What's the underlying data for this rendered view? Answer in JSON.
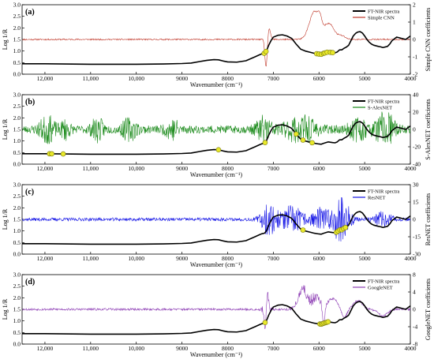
{
  "colors": {
    "spectrum": "#000000",
    "marker_fill": "#e8e82a",
    "marker_stroke": "#7a7a10",
    "panel_a": "#c0392b",
    "panel_b": "#1a8a1a",
    "panel_c": "#1414e6",
    "panel_d": "#8e3fb5"
  },
  "chart_data": [
    {
      "type": "line",
      "panel": "(a)",
      "xlabel": "Wavenumber (cm⁻¹)",
      "ylabel_left": "Log 1/R",
      "ylabel_right": "Simple CNN coefficients",
      "x_range": [
        12500,
        4000
      ],
      "x_ticks": [
        12000,
        11000,
        10000,
        9000,
        8000,
        7000,
        6000,
        5000,
        4000
      ],
      "x_tick_labels": [
        "12,000",
        "11,000",
        "10,000",
        "9000",
        "8000",
        "7000",
        "6000",
        "5000",
        "4000"
      ],
      "ylim_left": [
        0.0,
        3.0
      ],
      "y_ticks_left": [
        "0.0",
        "0.5",
        "1.0",
        "1.5",
        "2.0",
        "2.5",
        "3.0"
      ],
      "ylim_right": [
        -2,
        2
      ],
      "y_ticks_right": [
        "-2",
        "-1",
        "0",
        "1",
        "2"
      ],
      "legend": [
        "FT-NIR spectra",
        "Simple CNN"
      ],
      "legend_position": "top-right",
      "coef_series": {
        "name": "Simple CNN",
        "noise": 0.04,
        "seed": 11,
        "baseline": 0,
        "features": [
          {
            "x": 7160,
            "a": -1.6,
            "w": 25
          },
          {
            "x": 7090,
            "a": 0.6,
            "w": 30
          },
          {
            "x": 6100,
            "a": 1.6,
            "w": 110
          },
          {
            "x": 5980,
            "a": 0.5,
            "w": 40
          },
          {
            "x": 5780,
            "a": 0.9,
            "w": 110
          },
          {
            "x": 5500,
            "a": 0.2,
            "w": 80
          }
        ]
      },
      "highlights": [
        7200,
        7160,
        6050,
        6000,
        5950,
        5900,
        5870,
        5820,
        5750,
        5700
      ]
    },
    {
      "type": "line",
      "panel": "(b)",
      "xlabel": "Wavenumber (cm⁻¹)",
      "ylabel_left": "Log 1/R",
      "ylabel_right": "S-AlexNET coefficients",
      "x_range": [
        12500,
        4000
      ],
      "x_ticks": [
        12000,
        11000,
        10000,
        9000,
        8000,
        7000,
        6000,
        5000,
        4000
      ],
      "x_tick_labels": [
        "12,000",
        "11,000",
        "10,000",
        "9000",
        "8000",
        "7000",
        "6000",
        "5000",
        "4000"
      ],
      "ylim_left": [
        0.0,
        3.0
      ],
      "y_ticks_left": [
        "0.0",
        "0.5",
        "1.0",
        "1.5",
        "2.0",
        "2.5",
        "3.0"
      ],
      "ylim_right": [
        -40,
        40
      ],
      "y_ticks_right": [
        "-40",
        "-20",
        "0",
        "20",
        "40"
      ],
      "legend": [
        "FT-NIR spectra",
        "S-AlexNET"
      ],
      "legend_position": "top-right",
      "coef_series": {
        "name": "S-AlexNET",
        "noise": 4.5,
        "seed": 23,
        "baseline": 0,
        "bursts": [
          {
            "x": 11950,
            "w": 250,
            "a": 14
          },
          {
            "x": 11550,
            "w": 150,
            "a": 10
          },
          {
            "x": 10850,
            "w": 200,
            "a": 12
          },
          {
            "x": 10150,
            "w": 250,
            "a": 11
          },
          {
            "x": 9200,
            "w": 250,
            "a": 10
          },
          {
            "x": 7200,
            "w": 250,
            "a": 14
          },
          {
            "x": 6400,
            "w": 500,
            "a": 14
          },
          {
            "x": 5150,
            "w": 300,
            "a": 11
          },
          {
            "x": 4550,
            "w": 300,
            "a": 20
          }
        ]
      },
      "highlights": [
        11900,
        11850,
        11600,
        8200,
        7180,
        6500,
        6350,
        6150
      ]
    },
    {
      "type": "line",
      "panel": "(c)",
      "xlabel": "Wavenumber (cm⁻¹)",
      "ylabel_left": "Log 1/R",
      "ylabel_right": "ResNET coefficients",
      "x_range": [
        12500,
        4000
      ],
      "x_ticks": [
        12000,
        11000,
        10000,
        9000,
        8000,
        7000,
        6000,
        5000,
        4000
      ],
      "x_tick_labels": [
        "12,000",
        "11,000",
        "10,000",
        "9000",
        "8000",
        "7000",
        "6000",
        "5000",
        "4000"
      ],
      "ylim_left": [
        0.0,
        3.0
      ],
      "y_ticks_left": [
        "0.0",
        "0.5",
        "1.0",
        "1.5",
        "2.0",
        "2.5",
        "3.0"
      ],
      "ylim_right": [
        -30,
        30
      ],
      "y_ticks_right": [
        "-30",
        "-15",
        "0",
        "15",
        "30"
      ],
      "legend": [
        "FT-NIR spectra",
        "ResNET"
      ],
      "legend_position": "top-right",
      "coef_series": {
        "name": "ResNET",
        "noise": 1.4,
        "seed": 37,
        "baseline": 0,
        "bursts": [
          {
            "x": 7100,
            "w": 250,
            "a": 13
          },
          {
            "x": 6600,
            "w": 400,
            "a": 11
          },
          {
            "x": 5950,
            "w": 300,
            "a": 10
          },
          {
            "x": 5500,
            "w": 250,
            "a": 24
          },
          {
            "x": 4600,
            "w": 300,
            "a": 6
          }
        ]
      },
      "highlights": [
        6350,
        5620,
        5580,
        5540,
        5500,
        5460,
        5420
      ]
    },
    {
      "type": "line",
      "panel": "(d)",
      "xlabel": "Wavenumber (cm⁻¹)",
      "ylabel_left": "Log 1/R",
      "ylabel_right": "GoogleNET coefficients",
      "x_range": [
        12500,
        4000
      ],
      "x_ticks": [
        12000,
        11000,
        10000,
        9000,
        8000,
        7000,
        6000,
        5000,
        4000
      ],
      "x_tick_labels": [
        "12,000",
        "11,000",
        "10,000",
        "9000",
        "8000",
        "7000",
        "6000",
        "5000",
        "4000"
      ],
      "ylim_left": [
        0.0,
        3.0
      ],
      "y_ticks_left": [
        "0.0",
        "0.5",
        "1.0",
        "1.5",
        "2.0",
        "2.5",
        "3.0"
      ],
      "ylim_right": [
        -8,
        8
      ],
      "y_ticks_right": [
        "-8",
        "-4",
        "0",
        "4",
        "8"
      ],
      "legend": [
        "FT-NIR spectra",
        "GoogleNET"
      ],
      "legend_position": "top-right",
      "coef_series": {
        "name": "GoogleNET",
        "noise": 0.25,
        "seed": 53,
        "baseline": 0,
        "features": [
          {
            "x": 7180,
            "a": -4.0,
            "w": 20
          },
          {
            "x": 7120,
            "a": 2.5,
            "w": 25
          },
          {
            "x": 6350,
            "a": 4.5,
            "w": 100
          },
          {
            "x": 6050,
            "a": 3.0,
            "w": 90
          },
          {
            "x": 5900,
            "a": -5.0,
            "w": 25
          },
          {
            "x": 5700,
            "a": 2.5,
            "w": 110
          },
          {
            "x": 5450,
            "a": -2.0,
            "w": 60
          },
          {
            "x": 5150,
            "a": 2.0,
            "w": 100
          },
          {
            "x": 4600,
            "a": -1.5,
            "w": 100
          }
        ],
        "bursts": [
          {
            "x": 7150,
            "w": 120,
            "a": 1.5
          },
          {
            "x": 6200,
            "w": 400,
            "a": 1.2
          }
        ]
      },
      "highlights": [
        7180,
        5980,
        5950,
        5920,
        5890,
        5860,
        5830,
        5800
      ]
    }
  ],
  "spectrum": {
    "name": "FT-NIR spectra",
    "x": [
      12500,
      12000,
      11000,
      10000,
      9400,
      9000,
      8800,
      8600,
      8450,
      8300,
      8200,
      8100,
      8000,
      7800,
      7600,
      7400,
      7300,
      7250,
      7200,
      7180,
      7150,
      7100,
      7050,
      7000,
      6900,
      6800,
      6700,
      6600,
      6500,
      6400,
      6300,
      6200,
      6100,
      6000,
      5950,
      5900,
      5850,
      5800,
      5700,
      5650,
      5600,
      5550,
      5500,
      5450,
      5400,
      5350,
      5300,
      5250,
      5200,
      5150,
      5100,
      5050,
      5000,
      4950,
      4900,
      4850,
      4800,
      4700,
      4650,
      4600,
      4500,
      4450,
      4400,
      4300,
      4200,
      4100,
      4000
    ],
    "y": [
      0.45,
      0.45,
      0.43,
      0.43,
      0.44,
      0.46,
      0.48,
      0.55,
      0.6,
      0.63,
      0.62,
      0.57,
      0.53,
      0.52,
      0.58,
      0.75,
      0.84,
      0.88,
      0.9,
      0.93,
      1.01,
      1.25,
      1.45,
      1.6,
      1.68,
      1.7,
      1.65,
      1.55,
      1.3,
      1.08,
      1.0,
      0.95,
      0.9,
      0.87,
      0.86,
      0.9,
      0.93,
      0.96,
      0.93,
      0.92,
      0.96,
      1.05,
      1.05,
      1.12,
      1.17,
      1.25,
      1.45,
      1.65,
      1.76,
      1.82,
      1.84,
      1.78,
      1.65,
      1.5,
      1.38,
      1.3,
      1.25,
      1.2,
      1.18,
      1.15,
      1.2,
      1.3,
      1.45,
      1.6,
      1.55,
      1.5,
      1.65
    ]
  }
}
